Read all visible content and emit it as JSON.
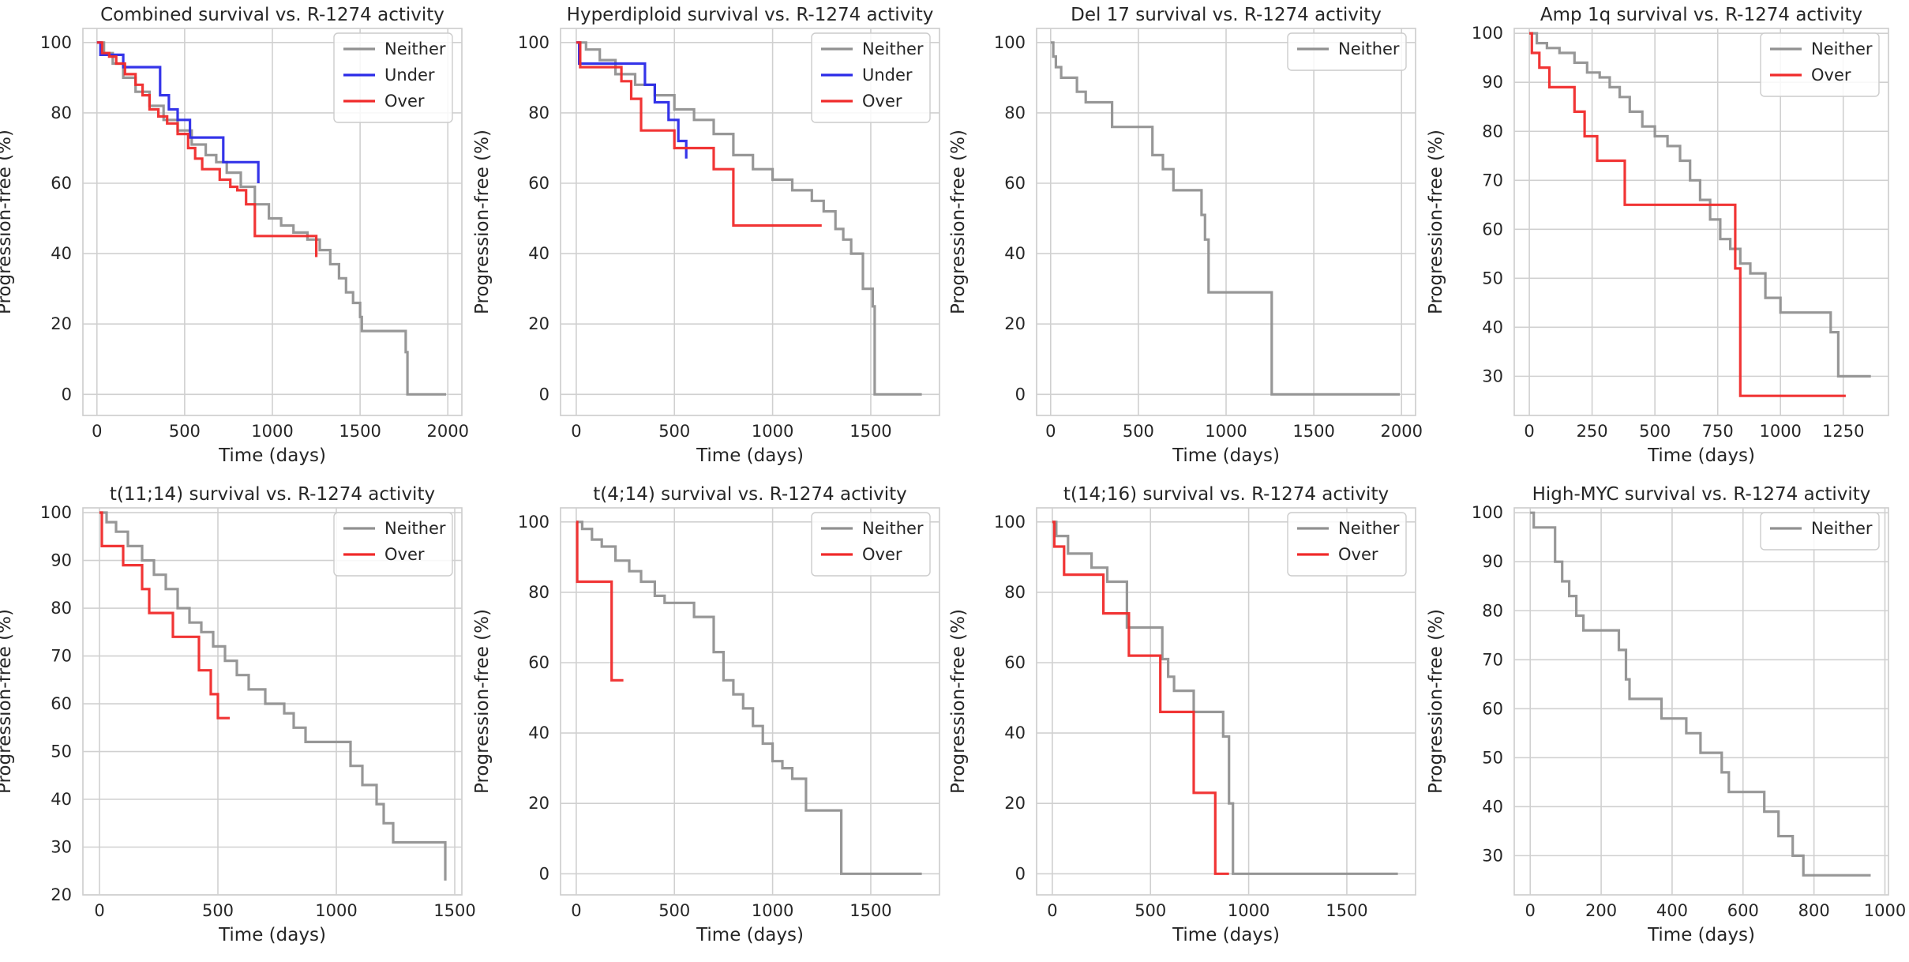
{
  "chart_data": [
    {
      "type": "line",
      "title": "Combined survival vs. R-1274 activity",
      "xlabel": "Time (days)",
      "ylabel": "Progression-free (%)",
      "xlim": [
        -80,
        2080
      ],
      "ylim": [
        -6,
        104
      ],
      "xticks": [
        0,
        500,
        1000,
        1500,
        2000
      ],
      "yticks": [
        0,
        20,
        40,
        60,
        80,
        100
      ],
      "grid": true,
      "legend_position": "top-right",
      "series": [
        {
          "name": "Neither",
          "color": "#919191",
          "x": [
            0,
            40,
            90,
            150,
            220,
            300,
            380,
            460,
            540,
            620,
            680,
            740,
            820,
            900,
            980,
            1050,
            1120,
            1200,
            1270,
            1330,
            1380,
            1420,
            1460,
            1500,
            1510,
            1760,
            1770,
            1990
          ],
          "y": [
            100,
            97,
            94,
            90,
            86,
            82,
            78,
            75,
            71,
            68,
            66,
            63,
            59,
            54,
            50,
            48,
            46,
            44,
            41,
            37,
            33,
            29,
            26,
            22,
            18,
            12,
            0,
            0
          ]
        },
        {
          "name": "Under",
          "color": "#2a2ae8",
          "x": [
            0,
            20,
            150,
            360,
            410,
            460,
            530,
            720,
            920
          ],
          "y": [
            100,
            96.5,
            93,
            85,
            81,
            78,
            73,
            66,
            60
          ]
        },
        {
          "name": "Over",
          "color": "#f02a2a",
          "x": [
            0,
            30,
            70,
            110,
            160,
            220,
            260,
            300,
            350,
            400,
            460,
            520,
            560,
            600,
            640,
            700,
            760,
            800,
            850,
            900,
            950,
            1000,
            1200,
            1250
          ],
          "y": [
            100,
            97,
            96,
            94,
            91,
            88,
            85,
            81,
            79,
            77,
            74,
            70,
            67,
            64,
            64,
            61,
            59,
            58,
            54,
            45,
            45,
            45,
            45,
            39
          ]
        }
      ]
    },
    {
      "type": "line",
      "title": "Hyperdiploid survival vs. R-1274 activity",
      "xlabel": "Time (days)",
      "ylabel": "Progression-free (%)",
      "xlim": [
        -80,
        1850
      ],
      "ylim": [
        -6,
        104
      ],
      "xticks": [
        0,
        500,
        1000,
        1500
      ],
      "yticks": [
        0,
        20,
        40,
        60,
        80,
        100
      ],
      "grid": true,
      "legend_position": "top-right",
      "series": [
        {
          "name": "Neither",
          "color": "#919191",
          "x": [
            0,
            50,
            120,
            200,
            300,
            400,
            500,
            600,
            700,
            800,
            900,
            1000,
            1100,
            1200,
            1260,
            1320,
            1360,
            1400,
            1460,
            1510,
            1520,
            1760
          ],
          "y": [
            100,
            98,
            95,
            91,
            88,
            85,
            81,
            78,
            74,
            68,
            64,
            61,
            58,
            55,
            52,
            47,
            44,
            40,
            30,
            25,
            0,
            0
          ]
        },
        {
          "name": "Under",
          "color": "#2a2ae8",
          "x": [
            0,
            15,
            350,
            400,
            470,
            520,
            560
          ],
          "y": [
            100,
            94,
            88,
            83,
            78,
            72,
            67
          ]
        },
        {
          "name": "Over",
          "color": "#f02a2a",
          "x": [
            0,
            20,
            230,
            280,
            330,
            500,
            540,
            700,
            800,
            1250
          ],
          "y": [
            100,
            93,
            89,
            84,
            75,
            70,
            70,
            64,
            48,
            48
          ]
        }
      ]
    },
    {
      "type": "line",
      "title": "Del 17 survival vs. R-1274 activity",
      "xlabel": "Time (days)",
      "ylabel": "Progression-free (%)",
      "xlim": [
        -80,
        2080
      ],
      "ylim": [
        -6,
        104
      ],
      "xticks": [
        0,
        500,
        1000,
        1500,
        2000
      ],
      "yticks": [
        0,
        20,
        40,
        60,
        80,
        100
      ],
      "grid": true,
      "legend_position": "top-right",
      "series": [
        {
          "name": "Neither",
          "color": "#919191",
          "x": [
            0,
            15,
            30,
            60,
            150,
            200,
            350,
            580,
            640,
            700,
            860,
            880,
            900,
            1260,
            1990
          ],
          "y": [
            100,
            96,
            93,
            90,
            86,
            83,
            76,
            68,
            64,
            58,
            51,
            44,
            29,
            0,
            0
          ]
        }
      ]
    },
    {
      "type": "line",
      "title": "Amp 1q survival vs. R-1274 activity",
      "xlabel": "Time (days)",
      "ylabel": "Progression-free (%)",
      "xlim": [
        -60,
        1430
      ],
      "ylim": [
        22,
        101
      ],
      "xticks": [
        0,
        250,
        500,
        750,
        1000,
        1250
      ],
      "yticks": [
        30,
        40,
        50,
        60,
        70,
        80,
        90,
        100
      ],
      "grid": true,
      "legend_position": "top-right",
      "series": [
        {
          "name": "Neither",
          "color": "#919191",
          "x": [
            0,
            30,
            70,
            120,
            180,
            230,
            280,
            320,
            360,
            400,
            450,
            500,
            550,
            600,
            640,
            680,
            720,
            760,
            800,
            840,
            880,
            940,
            1000,
            1200,
            1230,
            1360
          ],
          "y": [
            100,
            98,
            97,
            96,
            94,
            92,
            91,
            89,
            87,
            84,
            81,
            79,
            77,
            74,
            70,
            66,
            62,
            58,
            56,
            53,
            51,
            46,
            43,
            39,
            30,
            30
          ]
        },
        {
          "name": "Over",
          "color": "#f02a2a",
          "x": [
            0,
            10,
            40,
            80,
            180,
            220,
            270,
            380,
            820,
            840,
            1260
          ],
          "y": [
            100,
            96,
            93,
            89,
            84,
            79,
            74,
            65,
            52,
            26,
            26
          ]
        }
      ]
    },
    {
      "type": "line",
      "title": "t(11;14) survival vs. R-1274 activity",
      "xlabel": "Time (days)",
      "ylabel": "Progression-free (%)",
      "xlim": [
        -70,
        1530
      ],
      "ylim": [
        20,
        101
      ],
      "xticks": [
        0,
        500,
        1000,
        1500
      ],
      "yticks": [
        20,
        30,
        40,
        50,
        60,
        70,
        80,
        90,
        100
      ],
      "grid": true,
      "legend_position": "top-right",
      "series": [
        {
          "name": "Neither",
          "color": "#919191",
          "x": [
            0,
            30,
            70,
            120,
            180,
            230,
            280,
            330,
            380,
            430,
            480,
            530,
            580,
            630,
            700,
            780,
            820,
            870,
            1060,
            1110,
            1170,
            1200,
            1240,
            1460
          ],
          "y": [
            100,
            98,
            96,
            93,
            90,
            87,
            84,
            80,
            77,
            75,
            72,
            69,
            66,
            63,
            60,
            58,
            55,
            52,
            47,
            43,
            39,
            35,
            31,
            23
          ]
        },
        {
          "name": "Over",
          "color": "#f02a2a",
          "x": [
            0,
            10,
            100,
            180,
            210,
            310,
            420,
            470,
            500,
            550
          ],
          "y": [
            100,
            93,
            89,
            84,
            79,
            74,
            67,
            62,
            57,
            57
          ]
        }
      ]
    },
    {
      "type": "line",
      "title": "t(4;14) survival vs. R-1274 activity",
      "xlabel": "Time (days)",
      "ylabel": "Progression-free (%)",
      "xlim": [
        -80,
        1850
      ],
      "ylim": [
        -6,
        104
      ],
      "xticks": [
        0,
        500,
        1000,
        1500
      ],
      "yticks": [
        0,
        20,
        40,
        60,
        80,
        100
      ],
      "grid": true,
      "legend_position": "top-right",
      "series": [
        {
          "name": "Neither",
          "color": "#919191",
          "x": [
            0,
            30,
            80,
            130,
            200,
            270,
            330,
            400,
            450,
            540,
            600,
            700,
            750,
            800,
            850,
            900,
            950,
            1000,
            1050,
            1100,
            1170,
            1350,
            1760
          ],
          "y": [
            100,
            98,
            95,
            93,
            89,
            86,
            83,
            79,
            77,
            77,
            73,
            63,
            55,
            51,
            47,
            42,
            37,
            32,
            30,
            27,
            18,
            0,
            0
          ]
        },
        {
          "name": "Over",
          "color": "#f02a2a",
          "x": [
            0,
            5,
            180,
            240
          ],
          "y": [
            100,
            83,
            55,
            55
          ]
        }
      ]
    },
    {
      "type": "line",
      "title": "t(14;16) survival vs. R-1274 activity",
      "xlabel": "Time (days)",
      "ylabel": "Progression-free (%)",
      "xlim": [
        -80,
        1850
      ],
      "ylim": [
        -6,
        104
      ],
      "xticks": [
        0,
        500,
        1000,
        1500
      ],
      "yticks": [
        0,
        20,
        40,
        60,
        80,
        100
      ],
      "grid": true,
      "legend_position": "top-right",
      "series": [
        {
          "name": "Neither",
          "color": "#919191",
          "x": [
            0,
            20,
            80,
            200,
            280,
            380,
            560,
            590,
            620,
            720,
            870,
            900,
            920,
            1760
          ],
          "y": [
            100,
            96,
            91,
            87,
            83,
            70,
            61,
            56,
            52,
            46,
            39,
            20,
            0,
            0
          ]
        },
        {
          "name": "Over",
          "color": "#f02a2a",
          "x": [
            0,
            10,
            60,
            260,
            390,
            550,
            720,
            830,
            900
          ],
          "y": [
            100,
            93,
            85,
            74,
            62,
            46,
            23,
            0,
            0
          ]
        }
      ]
    },
    {
      "type": "line",
      "title": "High-MYC survival vs. R-1274 activity",
      "xlabel": "Time (days)",
      "ylabel": "Progression-free (%)",
      "xlim": [
        -45,
        1010
      ],
      "ylim": [
        22,
        101
      ],
      "xticks": [
        0,
        200,
        400,
        600,
        800,
        1000
      ],
      "yticks": [
        30,
        40,
        50,
        60,
        70,
        80,
        90,
        100
      ],
      "grid": true,
      "legend_position": "top-right",
      "series": [
        {
          "name": "Neither",
          "color": "#919191",
          "x": [
            0,
            10,
            70,
            90,
            110,
            130,
            150,
            250,
            270,
            280,
            370,
            440,
            480,
            540,
            560,
            660,
            700,
            740,
            770,
            960
          ],
          "y": [
            100,
            97,
            90,
            86,
            83,
            79,
            76,
            72,
            66,
            62,
            58,
            55,
            51,
            47,
            43,
            39,
            34,
            30,
            26,
            26
          ]
        }
      ]
    }
  ]
}
